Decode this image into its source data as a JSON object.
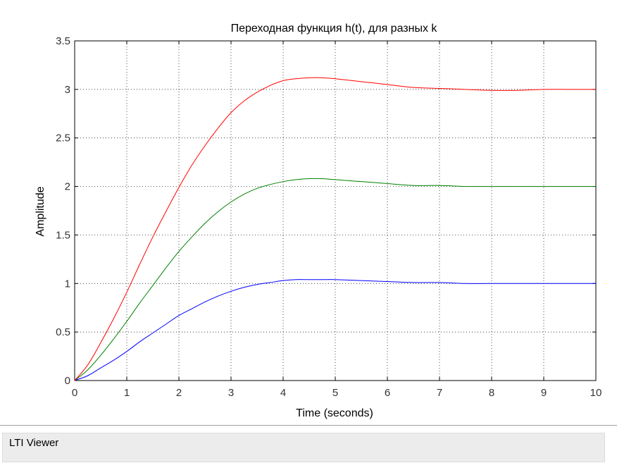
{
  "chart_data": {
    "type": "line",
    "title": "Переходная функция h(t), для разных k",
    "xlabel": "Time (seconds)",
    "ylabel": "Amplitude",
    "xlim": [
      0,
      10
    ],
    "ylim": [
      0,
      3.5
    ],
    "xticks": [
      "0",
      "1",
      "2",
      "3",
      "4",
      "5",
      "6",
      "7",
      "8",
      "9",
      "10"
    ],
    "yticks": [
      "0",
      "0.5",
      "1",
      "1.5",
      "2",
      "2.5",
      "3",
      "3.5"
    ],
    "grid": true,
    "x": [
      0,
      0.25,
      0.5,
      0.75,
      1,
      1.25,
      1.5,
      1.75,
      2,
      2.25,
      2.5,
      2.75,
      3,
      3.25,
      3.5,
      3.75,
      4,
      4.25,
      4.5,
      4.75,
      5,
      5.5,
      6,
      6.5,
      7,
      7.5,
      8,
      8.5,
      9,
      9.5,
      10
    ],
    "series": [
      {
        "color": "#0000ff",
        "values": [
          0,
          0.05,
          0.13,
          0.21,
          0.3,
          0.4,
          0.49,
          0.58,
          0.67,
          0.74,
          0.81,
          0.87,
          0.92,
          0.96,
          0.99,
          1.01,
          1.03,
          1.04,
          1.04,
          1.04,
          1.04,
          1.03,
          1.02,
          1.01,
          1.01,
          1.0,
          1.0,
          1.0,
          1.0,
          1.0,
          1.0
        ]
      },
      {
        "color": "#008000",
        "values": [
          0,
          0.11,
          0.26,
          0.43,
          0.61,
          0.8,
          0.98,
          1.16,
          1.33,
          1.48,
          1.62,
          1.74,
          1.84,
          1.92,
          1.98,
          2.02,
          2.05,
          2.07,
          2.08,
          2.08,
          2.07,
          2.05,
          2.03,
          2.01,
          2.01,
          2.0,
          2.0,
          2.0,
          2.0,
          2.0,
          2.0
        ]
      },
      {
        "color": "#ff0000",
        "values": [
          0,
          0.16,
          0.39,
          0.64,
          0.91,
          1.2,
          1.48,
          1.74,
          1.99,
          2.22,
          2.42,
          2.6,
          2.76,
          2.88,
          2.97,
          3.04,
          3.09,
          3.11,
          3.12,
          3.12,
          3.11,
          3.08,
          3.05,
          3.02,
          3.01,
          3.0,
          2.99,
          2.99,
          3.0,
          3.0,
          3.0
        ]
      }
    ]
  },
  "status_bar": {
    "label": "LTI Viewer"
  }
}
